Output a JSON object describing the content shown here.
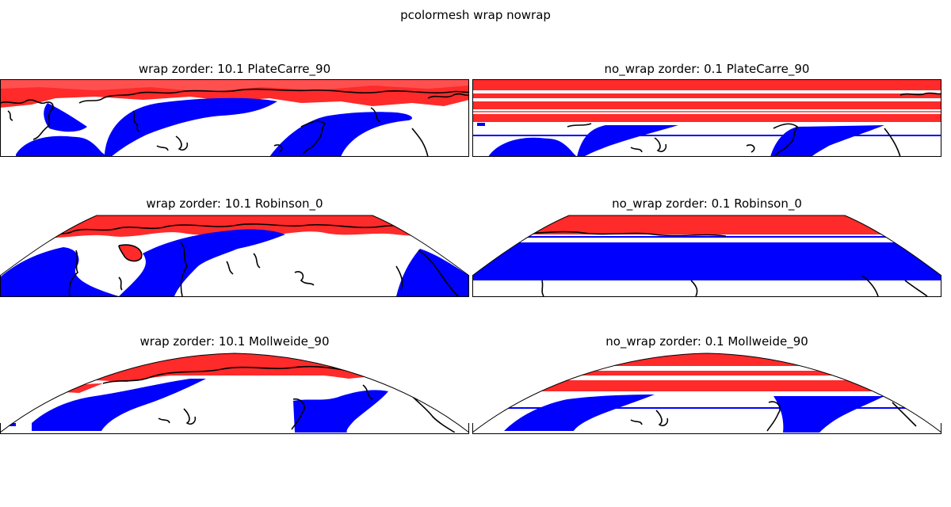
{
  "figure_title": "pcolormesh wrap nowrap",
  "colors": {
    "positive": "#ff0000",
    "negative": "#0000ff",
    "land": "#ffffff",
    "coastline": "#000000",
    "frame": "#000000"
  },
  "panels": [
    {
      "title": "wrap zorder: 10.1 PlateCarre_90",
      "projection": "PlateCarree",
      "central_longitude": 90,
      "wrap": true,
      "zorder": 10.1
    },
    {
      "title": "no_wrap zorder: 0.1 PlateCarre_90",
      "projection": "PlateCarree",
      "central_longitude": 90,
      "wrap": false,
      "zorder": 0.1
    },
    {
      "title": "wrap zorder: 10.1 Robinson_0",
      "projection": "Robinson",
      "central_longitude": 0,
      "wrap": true,
      "zorder": 10.1
    },
    {
      "title": "no_wrap zorder: 0.1 Robinson_0",
      "projection": "Robinson",
      "central_longitude": 0,
      "wrap": false,
      "zorder": 0.1
    },
    {
      "title": "wrap zorder: 10.1 Mollweide_90",
      "projection": "Mollweide",
      "central_longitude": 90,
      "wrap": true,
      "zorder": 10.1
    },
    {
      "title": "no_wrap zorder: 0.1 Mollweide_90",
      "projection": "Mollweide",
      "central_longitude": 90,
      "wrap": false,
      "zorder": 0.1
    }
  ]
}
